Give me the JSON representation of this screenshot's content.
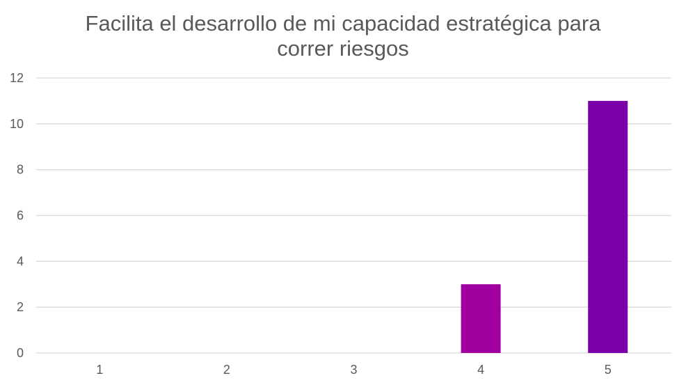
{
  "chart_data": {
    "type": "bar",
    "title_lines": [
      "Facilita el desarrollo de mi capacidad estratégica para",
      "correr riesgos"
    ],
    "categories": [
      "1",
      "2",
      "3",
      "4",
      "5"
    ],
    "values": [
      0,
      0,
      0,
      3,
      11
    ],
    "bar_colors": [
      "#A000A0",
      "#A000A0",
      "#A000A0",
      "#A000A0",
      "#7B00A8"
    ],
    "ylim": [
      0,
      12
    ],
    "yticks": [
      "0",
      "2",
      "4",
      "6",
      "8",
      "10",
      "12"
    ],
    "xlabel": "",
    "ylabel": "",
    "grid": true,
    "legend": "none",
    "gridline_color": "#D9D9D9",
    "text_color": "#595959"
  }
}
